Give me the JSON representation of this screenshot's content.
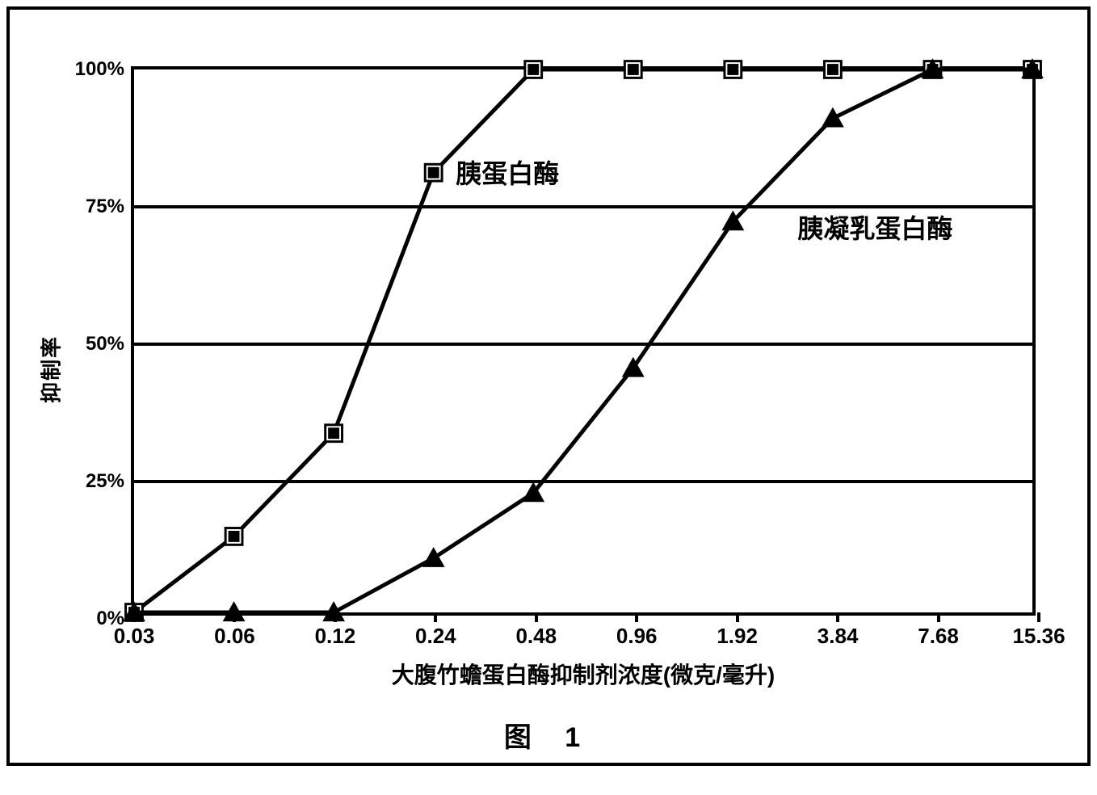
{
  "chart": {
    "type": "line",
    "background_color": "#ffffff",
    "border_color": "#000000",
    "line_color": "#000000",
    "line_width": 5,
    "grid_line_width": 4,
    "plot_border_width": 4,
    "ylabel": "抑制率",
    "xlabel": "大腹竹蟾蛋白酶抑制剂浓度(微克/毫升)",
    "caption": "图  1",
    "yticks": [
      {
        "value": 0,
        "label": "0%"
      },
      {
        "value": 25,
        "label": "25%"
      },
      {
        "value": 50,
        "label": "50%"
      },
      {
        "value": 75,
        "label": "75%"
      },
      {
        "value": 100,
        "label": "100%"
      }
    ],
    "ylim": [
      0,
      100
    ],
    "xticks": [
      "0.03",
      "0.06",
      "0.12",
      "0.24",
      "0.48",
      "0.96",
      "1.92",
      "3.84",
      "7.68",
      "15.36"
    ],
    "tick_fontsize": 24,
    "label_fontsize": 28,
    "series_label_fontsize": 32,
    "series": {
      "trypsin": {
        "label": "胰蛋白酶",
        "label_position_x": 3.2,
        "label_position_y": 82,
        "marker_style": "square",
        "marker_size": 12,
        "marker_color": "#000000",
        "data_x_index": [
          0,
          1,
          2,
          3,
          4,
          5,
          6,
          7,
          8,
          9
        ],
        "data_y": [
          0,
          14,
          33,
          81,
          100,
          100,
          100,
          100,
          100,
          100
        ]
      },
      "chymotrypsin": {
        "label": "胰凝乳蛋白酶",
        "label_position_x": 6.6,
        "label_position_y": 72,
        "marker_style": "triangle",
        "marker_size": 14,
        "marker_color": "#000000",
        "data_x_index": [
          0,
          1,
          2,
          3,
          4,
          5,
          6,
          7,
          8,
          9
        ],
        "data_y": [
          0,
          0,
          0,
          10,
          22,
          45,
          72,
          91,
          100,
          100
        ]
      }
    }
  }
}
